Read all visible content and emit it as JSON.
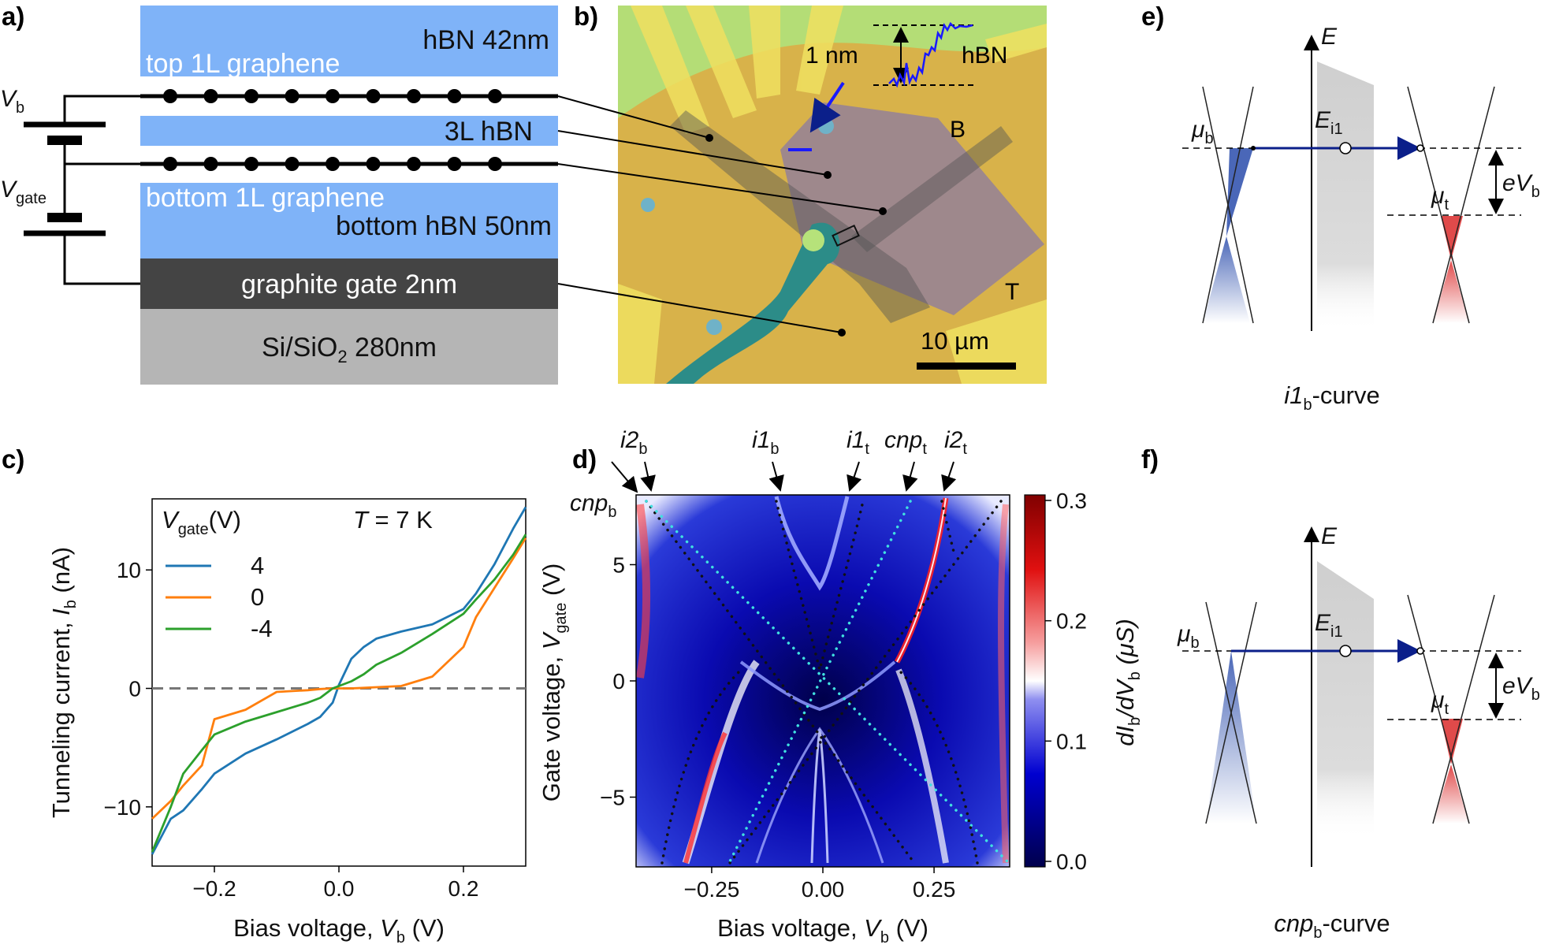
{
  "panels": {
    "a": {
      "label": "a)",
      "layers": {
        "hbn_top": "hBN 42nm",
        "top_graphene": "top 1L graphene",
        "mid_hbn": "3L hBN",
        "bottom_graphene": "bottom 1L graphene",
        "bottom_hbn": "bottom hBN 50nm",
        "graphite": "graphite gate 2nm",
        "substrate_main": "Si/SiO",
        "substrate_sub": "2",
        "substrate_rest": " 280nm"
      },
      "vb_sym": "V",
      "vb_sub": "b",
      "vgate_sym": "V",
      "vgate_sub": "gate"
    },
    "b": {
      "label": "b)",
      "step_label": "1 nm",
      "hbn_label": "hBN",
      "B_label": "B",
      "T_label": "T",
      "scale_label": "10 µm"
    },
    "c": {
      "label": "c)",
      "legend_title_main": "V",
      "legend_title_sub": "gate",
      "legend_title_unit": "(V)",
      "temp_sym": "T",
      "temp_rest": " = 7 K",
      "ylabel_main": "Tunneling current, ",
      "ylabel_sym": "I",
      "ylabel_sub": "b",
      "ylabel_unit": " (nA)",
      "xlabel_main": "Bias voltage, ",
      "xlabel_sym": "V",
      "xlabel_sub": "b",
      "xlabel_unit": " (V)"
    },
    "d": {
      "label": "d)",
      "annot": {
        "i2b": {
          "main": "i2",
          "sub": "b"
        },
        "i1b": {
          "main": "i1",
          "sub": "b"
        },
        "i1t": {
          "main": "i1",
          "sub": "t"
        },
        "cnpt": {
          "main": "cnp",
          "sub": "t"
        },
        "i2t": {
          "main": "i2",
          "sub": "t"
        },
        "cnpb": {
          "main": "cnp",
          "sub": "b"
        }
      },
      "xlabel_main": "Bias voltage, ",
      "xlabel_sym": "V",
      "xlabel_sub": "b",
      "xlabel_unit": " (V)",
      "ylabel_main": "Gate voltage, ",
      "ylabel_sym": "V",
      "ylabel_sub": "gate",
      "ylabel_unit": " (V)",
      "xticks": [
        "−0.25",
        "0.00",
        "0.25"
      ],
      "yticks": [
        "5",
        "0",
        "−5"
      ],
      "cbar_ticks": [
        "0.3",
        "0.2",
        "0.1",
        "0.0"
      ],
      "cbar_label": "dI_b/dV_b (μS)",
      "cbar_label_p1": "dI",
      "cbar_label_s1": "b",
      "cbar_label_p2": "/dV",
      "cbar_label_s2": "b",
      "cbar_label_p3": " (μS)"
    },
    "e": {
      "label": "e)",
      "E": "E",
      "mu_b": "μ",
      "mu_b_sub": "b",
      "E_i1": "E",
      "E_i1_sub": "i1",
      "mu_t": "μ",
      "mu_t_sub": "t",
      "eVb": "eV",
      "eVb_sub": "b",
      "caption_main": "i1",
      "caption_sub": "b",
      "caption_rest": "-curve"
    },
    "f": {
      "label": "f)",
      "E": "E",
      "mu_b": "μ",
      "mu_b_sub": "b",
      "E_i1": "E",
      "E_i1_sub": "i1",
      "mu_t": "μ",
      "mu_t_sub": "t",
      "eVb": "eV",
      "eVb_sub": "b",
      "caption_main": "cnp",
      "caption_sub": "b",
      "caption_rest": "-curve"
    }
  },
  "colors": {
    "hbn": "#7fb3f8",
    "graphite": "#444444",
    "substrate": "#b5b5b5",
    "series_4": "#1f77b4",
    "series_0": "#ff7f0e",
    "series_m4": "#2ca02c",
    "arrow": "#0b1f8a",
    "blue_cone": "#4a67b8",
    "red_cone": "#e04a4a"
  },
  "chart_data": [
    {
      "type": "line",
      "title": "",
      "xlabel": "Bias voltage, V_b (V)",
      "ylabel": "Tunneling current, I_b (nA)",
      "xlim": [
        -0.3,
        0.3
      ],
      "ylim": [
        -15,
        16
      ],
      "xticks": [
        "−0.2",
        "0.0",
        "0.2"
      ],
      "yticks": [
        "10",
        "0",
        "−10"
      ],
      "legend_title": "V_gate(V)",
      "annotation": "T = 7 K",
      "x": [
        -0.3,
        -0.27,
        -0.25,
        -0.22,
        -0.2,
        -0.15,
        -0.1,
        -0.05,
        -0.03,
        -0.01,
        0,
        0.02,
        0.04,
        0.06,
        0.1,
        0.15,
        0.2,
        0.22,
        0.25,
        0.28,
        0.3
      ],
      "series": [
        {
          "name": "4",
          "values": [
            -14,
            -11,
            -10.3,
            -8.5,
            -7.2,
            -5.5,
            -4.3,
            -3.0,
            -2.4,
            -1.2,
            0.3,
            2.5,
            3.5,
            4.2,
            4.8,
            5.4,
            6.7,
            8.0,
            10.5,
            13.5,
            15.3
          ]
        },
        {
          "name": "0",
          "values": [
            -11,
            -9.5,
            -8.2,
            -6.5,
            -2.6,
            -1.8,
            -0.3,
            -0.15,
            -0.05,
            0,
            0,
            0,
            0.05,
            0.1,
            0.2,
            1.0,
            3.5,
            6.0,
            8.5,
            11.0,
            12.7
          ]
        },
        {
          "name": "-4",
          "values": [
            -13.8,
            -10,
            -7.2,
            -5.2,
            -3.9,
            -2.8,
            -2.0,
            -1.2,
            -0.8,
            0,
            0.2,
            0.6,
            1.2,
            2.0,
            3.0,
            4.6,
            6.3,
            7.5,
            9.2,
            11.3,
            13.0
          ]
        }
      ]
    },
    {
      "type": "heatmap",
      "title": "",
      "xlabel": "Bias voltage, V_b (V)",
      "ylabel": "Gate voltage, V_gate (V)",
      "xlim": [
        -0.42,
        0.42
      ],
      "ylim": [
        -8,
        8
      ],
      "colorbar_range": [
        0.0,
        0.3
      ],
      "colorbar_label": "dI_b/dV_b (μS)",
      "features": [
        "i2_b",
        "i1_b",
        "i1_t",
        "cnp_t",
        "i2_t",
        "cnp_b"
      ]
    }
  ]
}
